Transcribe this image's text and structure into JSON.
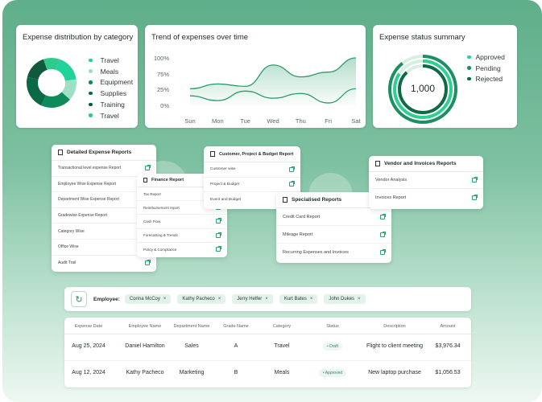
{
  "expense_distribution": {
    "title": "Expense distribution by category",
    "legend": [
      "Travel",
      "Meals",
      "Equipment",
      "Supplies",
      "Training",
      "Travel"
    ],
    "colors": [
      "#1fd39a",
      "#9fe0c4",
      "#0f8a5c",
      "#0b6a45",
      "#0f5a3c",
      "#2fc88d"
    ]
  },
  "trend": {
    "title": "Trend of expenses over time",
    "y_ticks": [
      "100%",
      "75%",
      "25%",
      "0%"
    ],
    "x_ticks": [
      "Sun",
      "Mon",
      "Tue",
      "Wed",
      "Thu",
      "Fri",
      "Sat"
    ]
  },
  "status_summary": {
    "title": "Expense status summary",
    "center_value": "1,000",
    "legend": [
      "Approved",
      "Pending",
      "Rejected"
    ]
  },
  "chart_data": [
    {
      "type": "pie",
      "title": "Expense distribution by category",
      "categories": [
        "Travel",
        "Meals",
        "Equipment",
        "Supplies",
        "Training",
        "Travel"
      ],
      "values": [
        18,
        14,
        20,
        22,
        16,
        10
      ]
    },
    {
      "type": "line",
      "title": "Trend of expenses over time",
      "categories": [
        "Sun",
        "Mon",
        "Tue",
        "Wed",
        "Thu",
        "Fri",
        "Sat"
      ],
      "series": [
        {
          "values": [
            35,
            45,
            40,
            85,
            60,
            70,
            100
          ]
        },
        {
          "values": [
            20,
            10,
            30,
            15,
            25,
            5,
            35
          ]
        }
      ],
      "ylim": [
        0,
        100
      ]
    }
  ],
  "detailed_reports": {
    "title": "Detailed Expense Reports",
    "items": [
      "Transactional level expense Report",
      "Employee Wise Expense Report",
      "Department Wise Expense Report",
      "Gradewise Expense Report",
      "Category Wise",
      "Office Wise",
      "Audit Trail"
    ]
  },
  "finance_report": {
    "title": "Finance Report",
    "items": [
      "Tax Report",
      "Reimbursement report",
      "Cash Flow",
      "Forecasting & Trends",
      "Policy & Compliance"
    ]
  },
  "customer_report": {
    "title": "Customer, Project & Budget Report",
    "items": [
      "Customer wise",
      "Project & Budget",
      "Event and Budget"
    ]
  },
  "specialised_reports": {
    "title": "Specialised Reports",
    "items": [
      "Credit Card Report",
      "Mileage Report",
      "Recurring Expenses and Invoices"
    ]
  },
  "vendor_reports": {
    "title": "Vendor and Invoices Reports",
    "items": [
      "Vendor Analysis",
      "Invoices Report"
    ]
  },
  "filter": {
    "label": "Employee:",
    "chips": [
      "Corina McCoy",
      "Kathy Pacheco",
      "Jerry Helfer",
      "Kurt Bates",
      "John Dukes"
    ]
  },
  "table": {
    "headers": [
      "Expense Date",
      "Employee Name",
      "Department Name",
      "Grade Name",
      "Category",
      "Status",
      "Description",
      "Amount"
    ],
    "rows": [
      [
        "Aug 25, 2024",
        "Daniel Hamilton",
        "Sales",
        "A",
        "Travel",
        "Draft",
        "Flight to client meeting",
        "$3,976.34"
      ],
      [
        "Aug 12, 2024",
        "Kathy Pacheco",
        "Marketing",
        "B",
        "Meals",
        "Approved",
        "New laptop purchase",
        "$1,056.53"
      ]
    ]
  }
}
